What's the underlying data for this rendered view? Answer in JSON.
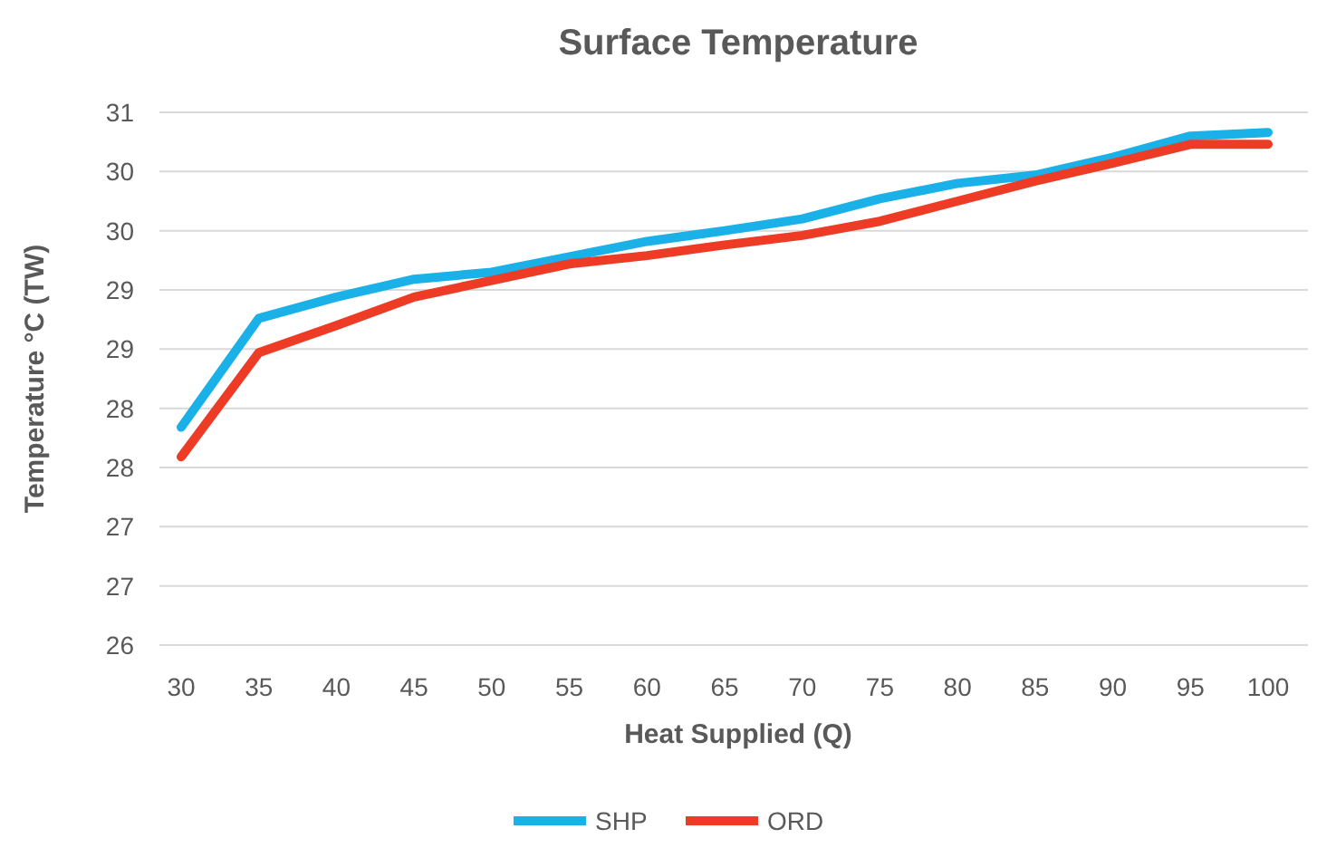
{
  "chart_data": {
    "type": "line",
    "title": "Surface Temperature",
    "xlabel": "Heat Supplied  (Q)",
    "ylabel": "Temperature °C  (TW)",
    "categories": [
      "30",
      "35",
      "40",
      "45",
      "50",
      "55",
      "60",
      "65",
      "70",
      "75",
      "80",
      "85",
      "90",
      "95",
      "100"
    ],
    "series": [
      {
        "name": "SHP",
        "color": "#1ab0e8",
        "values": [
          27.84,
          28.76,
          28.94,
          29.09,
          29.15,
          29.28,
          29.41,
          29.5,
          29.6,
          29.77,
          29.9,
          29.97,
          30.12,
          30.3,
          30.33
        ]
      },
      {
        "name": "ORD",
        "color": "#ee3b25",
        "values": [
          27.59,
          28.47,
          28.7,
          28.94,
          29.08,
          29.22,
          29.29,
          29.38,
          29.46,
          29.58,
          29.75,
          29.92,
          30.07,
          30.23,
          30.23
        ]
      }
    ],
    "ylim": [
      26,
      30.5
    ],
    "yticks": [
      26,
      {
        "value": 26.5,
        "label": "27"
      },
      27,
      {
        "value": 27.5,
        "label": "28"
      },
      28,
      {
        "value": 28.5,
        "label": "29"
      },
      29,
      {
        "value": 29.5,
        "label": "30"
      },
      30,
      {
        "value": 30.5,
        "label": "31"
      }
    ],
    "grid": "y",
    "legend": "bottom",
    "marker": "none",
    "line_style": "solid"
  }
}
